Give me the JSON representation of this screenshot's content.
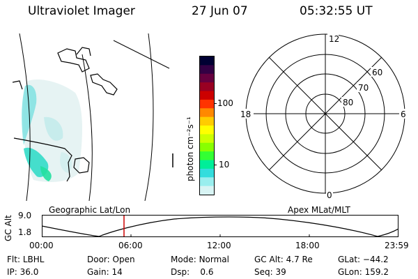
{
  "header": {
    "instrument": "Ultraviolet Imager",
    "date": "27 Jun 07",
    "time": "05:32:55 UT"
  },
  "colorbar": {
    "label": "photon cm⁻²s⁻¹",
    "ticks": [
      "100",
      "10"
    ],
    "colors": [
      "#000033",
      "#330044",
      "#66003f",
      "#990022",
      "#cc0000",
      "#ff3300",
      "#ff8800",
      "#ffcc00",
      "#ffff00",
      "#ccff00",
      "#88ff00",
      "#33ff33",
      "#00ee99",
      "#33dddd",
      "#99eeee",
      "#d8f4f4"
    ]
  },
  "polar": {
    "mlt_labels": {
      "top": "12",
      "left": "18",
      "right": "6",
      "bottom": "0"
    },
    "lat_labels": [
      "60",
      "70",
      "80"
    ]
  },
  "timeline": {
    "left_label": "Geographic Lat/Lon",
    "right_label": "Apex MLat/MLT",
    "axis_title": "GC Alt",
    "y_max": "9.0",
    "y_min": "1.8",
    "x_ticks": [
      "00:00",
      "06:00",
      "12:00",
      "18:00",
      "23:59"
    ],
    "marker_color": "#cc0000"
  },
  "footer": {
    "row1": [
      {
        "key": "Flt:",
        "val": "LBHL"
      },
      {
        "key": "Door:",
        "val": "Open"
      },
      {
        "key": "Mode:",
        "val": "Normal"
      },
      {
        "key": "GC Alt:",
        "val": "4.7 Re"
      },
      {
        "key": "GLat:",
        "val": "−44.2"
      }
    ],
    "row2": [
      {
        "key": "IP:",
        "val": "36.0"
      },
      {
        "key": "Gain:",
        "val": "14"
      },
      {
        "key": "Dsp:",
        "val": "0.6"
      },
      {
        "key": "Seq:",
        "val": "39"
      },
      {
        "key": "GLon:",
        "val": "159.2"
      }
    ]
  }
}
